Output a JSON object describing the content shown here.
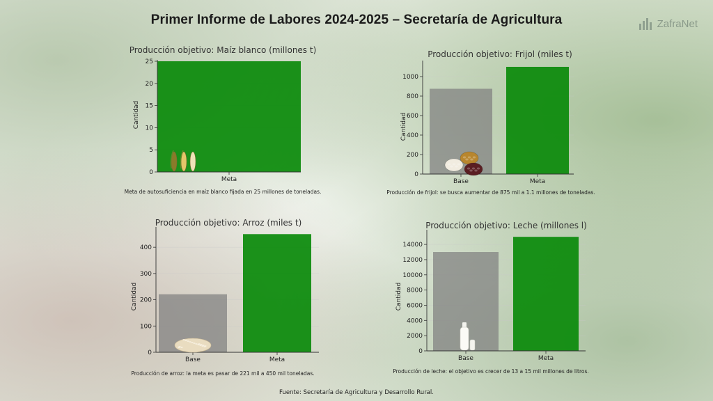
{
  "header": {
    "title": "Primer Informe de Labores 2024-2025 –  Secretaría de Agricultura",
    "brand": "ZafraNet",
    "brand_icon": "bar-chart-icon"
  },
  "colors": {
    "base_bar": "#808080",
    "meta_bar": "#0a8a0a"
  },
  "charts": [
    {
      "title": "Producción objetivo: Maíz blanco (millones t)",
      "caption": "Meta de autosuficiencia en maíz blanco fijada en 25 millones de toneladas."
    },
    {
      "title": "Producción objetivo: Frijol (miles t)",
      "caption": "Producción de frijol: se busca aumentar de 875 mil a 1.1 millones de toneladas."
    },
    {
      "title": "Producción objetivo: Arroz (miles t)",
      "caption": "Producción de arroz: la meta es pasar de 221 mil a 450 mil toneladas."
    },
    {
      "title": "Producción objetivo: Leche (millones l)",
      "caption": "Producción de leche: el objetivo es crecer de 13 a 15 mil millones de litros."
    }
  ],
  "chart_data": [
    {
      "type": "bar",
      "title": "Producción objetivo: Maíz blanco (millones t)",
      "ylabel": "Cantidad",
      "categories": [
        "Meta"
      ],
      "values": [
        25
      ],
      "ylim": [
        0,
        25
      ],
      "yticks": [
        0,
        5,
        10,
        15,
        20,
        25
      ],
      "icon": "corn-icon"
    },
    {
      "type": "bar",
      "title": "Producción objetivo: Frijol (miles t)",
      "ylabel": "Cantidad",
      "categories": [
        "Base",
        "Meta"
      ],
      "values": [
        875,
        1100
      ],
      "ylim": [
        0,
        1150
      ],
      "yticks": [
        0,
        200,
        400,
        600,
        800,
        1000
      ],
      "icon": "beans-icon"
    },
    {
      "type": "bar",
      "title": "Producción objetivo: Arroz (miles t)",
      "ylabel": "Cantidad",
      "categories": [
        "Base",
        "Meta"
      ],
      "values": [
        221,
        450
      ],
      "ylim": [
        0,
        472
      ],
      "yticks": [
        0,
        100,
        200,
        300,
        400
      ],
      "icon": "rice-icon"
    },
    {
      "type": "bar",
      "title": "Producción objetivo: Leche (millones l)",
      "ylabel": "Cantidad",
      "categories": [
        "Base",
        "Meta"
      ],
      "values": [
        13000,
        15000
      ],
      "ylim": [
        0,
        15750
      ],
      "yticks": [
        0,
        2000,
        4000,
        6000,
        8000,
        10000,
        12000,
        14000
      ],
      "icon": "milk-bottle-icon"
    }
  ],
  "footer": {
    "source": "Fuente: Secretaría de Agricultura y Desarrollo Rural."
  }
}
